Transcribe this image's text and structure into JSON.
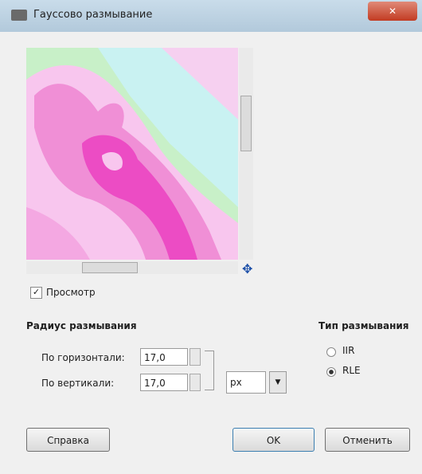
{
  "dialog": {
    "title": "Гауссово размывание",
    "preview_label": "Просмотр",
    "radius": {
      "heading": "Радиус размывания",
      "horizontal_label": "По горизонтали:",
      "horizontal_value": "17,0",
      "vertical_label": "По вертикали:",
      "vertical_value": "17,0",
      "unit": "px"
    },
    "blur_type": {
      "heading": "Тип размывания",
      "options": [
        "IIR",
        "RLE"
      ]
    },
    "buttons": {
      "help": "Справка",
      "ok": "OK",
      "cancel": "Отменить"
    }
  }
}
